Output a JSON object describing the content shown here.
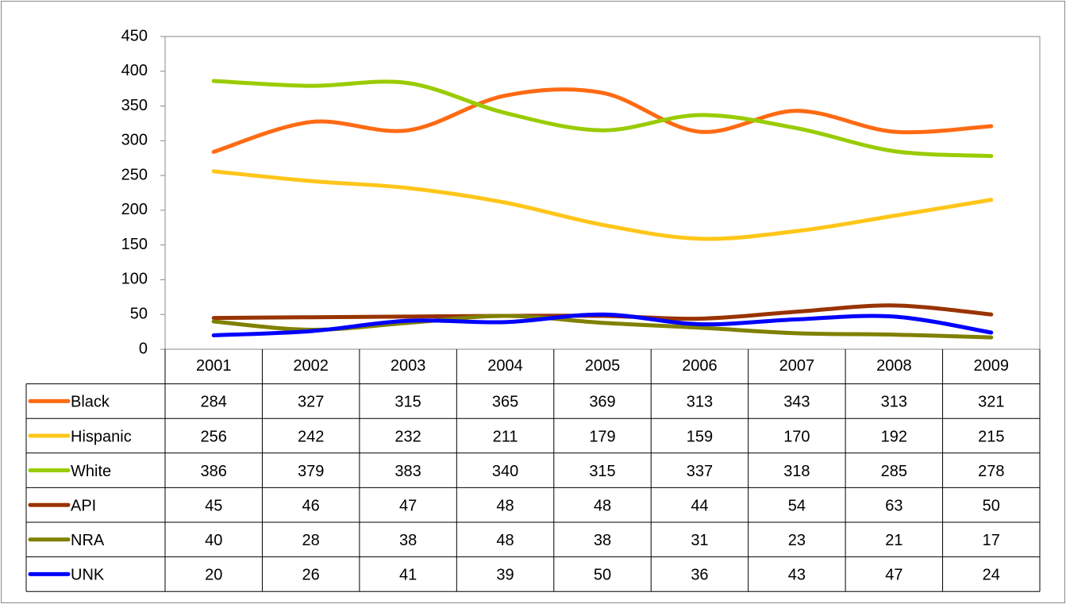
{
  "chart_data": {
    "type": "line",
    "categories": [
      "2001",
      "2002",
      "2003",
      "2004",
      "2005",
      "2006",
      "2007",
      "2008",
      "2009"
    ],
    "series": [
      {
        "name": "Black",
        "color": "#ff6a13",
        "values": [
          284,
          327,
          315,
          365,
          369,
          313,
          343,
          313,
          321
        ]
      },
      {
        "name": "Hispanic",
        "color": "#ffc61a",
        "values": [
          256,
          242,
          232,
          211,
          179,
          159,
          170,
          192,
          215
        ]
      },
      {
        "name": "White",
        "color": "#99cc00",
        "values": [
          386,
          379,
          383,
          340,
          315,
          337,
          318,
          285,
          278
        ]
      },
      {
        "name": "API",
        "color": "#993300",
        "values": [
          45,
          46,
          47,
          48,
          48,
          44,
          54,
          63,
          50
        ]
      },
      {
        "name": "NRA",
        "color": "#808000",
        "values": [
          40,
          28,
          38,
          48,
          38,
          31,
          23,
          21,
          17
        ]
      },
      {
        "name": "UNK",
        "color": "#0000ff",
        "values": [
          20,
          26,
          41,
          39,
          50,
          36,
          43,
          47,
          24
        ]
      }
    ],
    "ylim": [
      0,
      450
    ],
    "yticks": [
      0,
      50,
      100,
      150,
      200,
      250,
      300,
      350,
      400,
      450
    ],
    "smooth": true
  }
}
